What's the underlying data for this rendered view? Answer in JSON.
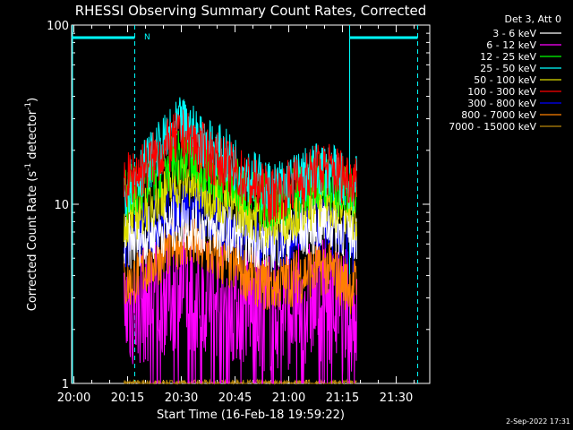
{
  "chart_data": {
    "type": "line",
    "title": "RHESSI Observing Summary Count Rates, Corrected",
    "xlabel": "Start Time (16-Feb-18 19:59:22)",
    "ylabel_main": "Corrected Count Rate (s",
    "ylabel_sup1": "-1",
    "ylabel_mid": " detector",
    "ylabel_sup2": "-1",
    "ylabel_end": ")",
    "y_scale": "log",
    "ylim": [
      1,
      100
    ],
    "xlim": [
      "19:59:22",
      "21:39:22"
    ],
    "x_ticks": [
      "20:00",
      "20:15",
      "20:30",
      "20:45",
      "21:00",
      "21:15",
      "21:30"
    ],
    "y_ticks": [
      "1",
      "10",
      "100"
    ],
    "grid": false,
    "legend_position": "top-right",
    "legend_title": "Det 3, Att 0",
    "date_stamp": "2-Sep-2022 17:31",
    "night_label": "N",
    "observing_windows": [
      {
        "start": "20:17",
        "end": "21:17"
      }
    ],
    "night_periods": [
      {
        "start": "19:59:22",
        "end": "20:17"
      },
      {
        "start": "21:17",
        "end": "21:36"
      }
    ],
    "time_markers": [
      "20:17",
      "21:17",
      "21:36"
    ],
    "series": [
      {
        "name": "3 - 6 keV",
        "color": "#ffffff",
        "values_at": {
          "20:14": 6,
          "20:30": 8,
          "20:55": 6,
          "21:10": 8,
          "21:17": 7
        }
      },
      {
        "name": "6 - 12 keV",
        "color": "#ff00ff",
        "values_at": {
          "20:14": 2.5,
          "20:30": 3.5,
          "20:55": 2.5,
          "21:10": 3,
          "21:17": 2.5
        }
      },
      {
        "name": "12 - 25 keV",
        "color": "#00ff00",
        "values_at": {
          "20:14": 11,
          "20:30": 19,
          "20:55": 10,
          "21:10": 14,
          "21:17": 11
        }
      },
      {
        "name": "25 - 50 keV",
        "color": "#00ffff",
        "values_at": {
          "20:14": 12,
          "20:30": 28,
          "20:55": 12,
          "21:10": 16,
          "21:17": 13
        }
      },
      {
        "name": "50 - 100 keV",
        "color": "#dddd00",
        "values_at": {
          "20:14": 8,
          "20:30": 14,
          "20:55": 8,
          "21:10": 11,
          "21:17": 9
        }
      },
      {
        "name": "100 - 300 keV",
        "color": "#ff0000",
        "values_at": {
          "20:14": 13,
          "20:30": 24,
          "20:55": 11,
          "21:10": 16,
          "21:17": 14
        }
      },
      {
        "name": "300 - 800 keV",
        "color": "#0000ff",
        "values_at": {
          "20:14": 6,
          "20:30": 10,
          "20:55": 6,
          "21:10": 8,
          "21:17": 6
        }
      },
      {
        "name": "800 - 7000 keV",
        "color": "#ff8000",
        "values_at": {
          "20:14": 3.5,
          "20:30": 6.5,
          "20:55": 3.5,
          "21:10": 4.5,
          "21:17": 3.5
        }
      },
      {
        "name": "7000 - 15000 keV",
        "color": "#b8860b",
        "values_at": {
          "20:14": 1,
          "20:30": 1,
          "20:55": 1,
          "21:10": 1,
          "21:17": 1
        }
      }
    ]
  }
}
